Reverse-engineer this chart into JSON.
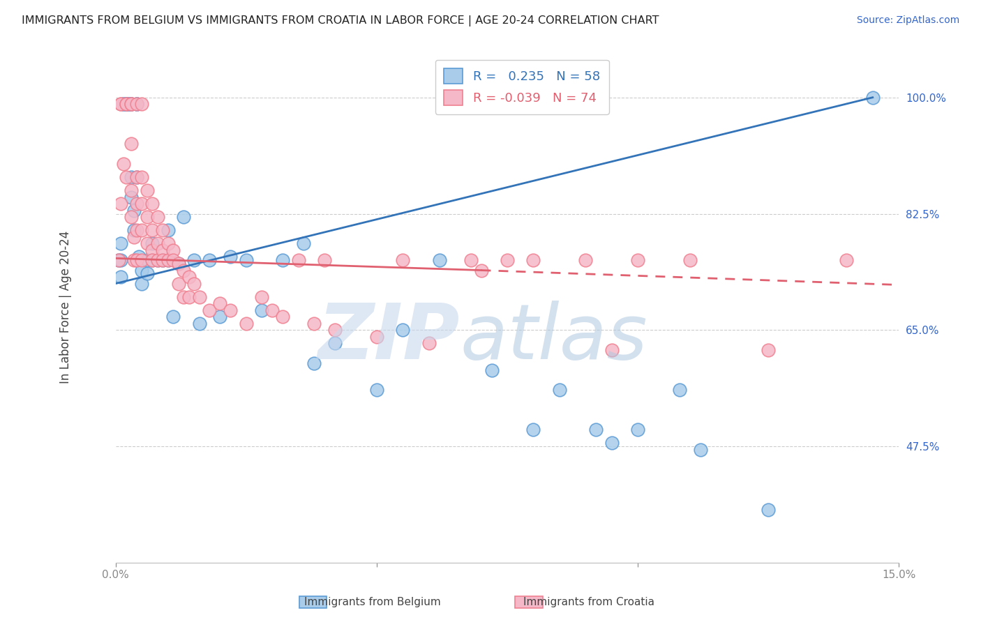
{
  "title": "IMMIGRANTS FROM BELGIUM VS IMMIGRANTS FROM CROATIA IN LABOR FORCE | AGE 20-24 CORRELATION CHART",
  "source": "Source: ZipAtlas.com",
  "ytick_labels": [
    "100.0%",
    "82.5%",
    "65.0%",
    "47.5%"
  ],
  "ytick_values": [
    1.0,
    0.825,
    0.65,
    0.475
  ],
  "xlim": [
    0.0,
    0.15
  ],
  "ylim": [
    0.3,
    1.07
  ],
  "belgium_R": 0.235,
  "belgium_N": 58,
  "croatia_R": -0.039,
  "croatia_N": 74,
  "belgium_color": "#A8CCEA",
  "croatia_color": "#F5B8C8",
  "belgium_edge_color": "#5B9BD5",
  "croatia_edge_color": "#F08090",
  "belgium_line_color": "#3373B8",
  "croatia_line_color": "#E06070",
  "legend_label_belgium": "Immigrants from Belgium",
  "legend_label_croatia": "Immigrants from Croatia",
  "belgium_x": [
    0.0005,
    0.001,
    0.001,
    0.001,
    0.0015,
    0.0015,
    0.002,
    0.002,
    0.002,
    0.0025,
    0.0025,
    0.003,
    0.003,
    0.003,
    0.003,
    0.0035,
    0.0035,
    0.004,
    0.004,
    0.004,
    0.0045,
    0.005,
    0.005,
    0.006,
    0.006,
    0.007,
    0.007,
    0.008,
    0.009,
    0.01,
    0.01,
    0.011,
    0.012,
    0.013,
    0.015,
    0.016,
    0.018,
    0.02,
    0.022,
    0.025,
    0.028,
    0.032,
    0.036,
    0.038,
    0.042,
    0.05,
    0.055,
    0.062,
    0.072,
    0.08,
    0.085,
    0.092,
    0.095,
    0.1,
    0.108,
    0.112,
    0.125,
    0.145
  ],
  "belgium_y": [
    0.755,
    0.78,
    0.755,
    0.73,
    0.99,
    0.99,
    0.99,
    0.99,
    0.99,
    0.99,
    0.99,
    0.99,
    0.99,
    0.88,
    0.85,
    0.83,
    0.8,
    0.99,
    0.99,
    0.88,
    0.76,
    0.74,
    0.72,
    0.755,
    0.735,
    0.78,
    0.755,
    0.755,
    0.755,
    0.8,
    0.755,
    0.67,
    0.75,
    0.82,
    0.755,
    0.66,
    0.755,
    0.67,
    0.76,
    0.755,
    0.68,
    0.755,
    0.78,
    0.6,
    0.63,
    0.56,
    0.65,
    0.755,
    0.59,
    0.5,
    0.56,
    0.5,
    0.48,
    0.5,
    0.56,
    0.47,
    0.38,
    1.0
  ],
  "croatia_x": [
    0.0005,
    0.001,
    0.001,
    0.001,
    0.0015,
    0.002,
    0.002,
    0.002,
    0.003,
    0.003,
    0.003,
    0.003,
    0.003,
    0.0035,
    0.0035,
    0.004,
    0.004,
    0.004,
    0.004,
    0.004,
    0.005,
    0.005,
    0.005,
    0.005,
    0.005,
    0.006,
    0.006,
    0.006,
    0.007,
    0.007,
    0.007,
    0.007,
    0.008,
    0.008,
    0.008,
    0.009,
    0.009,
    0.009,
    0.01,
    0.01,
    0.011,
    0.011,
    0.012,
    0.012,
    0.013,
    0.013,
    0.014,
    0.014,
    0.015,
    0.016,
    0.018,
    0.02,
    0.022,
    0.025,
    0.028,
    0.03,
    0.032,
    0.035,
    0.038,
    0.04,
    0.042,
    0.05,
    0.055,
    0.06,
    0.068,
    0.07,
    0.075,
    0.08,
    0.09,
    0.095,
    0.1,
    0.11,
    0.125,
    0.14
  ],
  "croatia_y": [
    0.755,
    0.99,
    0.99,
    0.84,
    0.9,
    0.99,
    0.99,
    0.88,
    0.99,
    0.99,
    0.93,
    0.86,
    0.82,
    0.79,
    0.755,
    0.99,
    0.88,
    0.84,
    0.8,
    0.755,
    0.99,
    0.88,
    0.84,
    0.8,
    0.755,
    0.86,
    0.82,
    0.78,
    0.84,
    0.8,
    0.77,
    0.755,
    0.82,
    0.78,
    0.755,
    0.8,
    0.77,
    0.755,
    0.78,
    0.755,
    0.77,
    0.755,
    0.75,
    0.72,
    0.74,
    0.7,
    0.73,
    0.7,
    0.72,
    0.7,
    0.68,
    0.69,
    0.68,
    0.66,
    0.7,
    0.68,
    0.67,
    0.755,
    0.66,
    0.755,
    0.65,
    0.64,
    0.755,
    0.63,
    0.755,
    0.74,
    0.755,
    0.755,
    0.755,
    0.62,
    0.755,
    0.755,
    0.62,
    0.755
  ]
}
